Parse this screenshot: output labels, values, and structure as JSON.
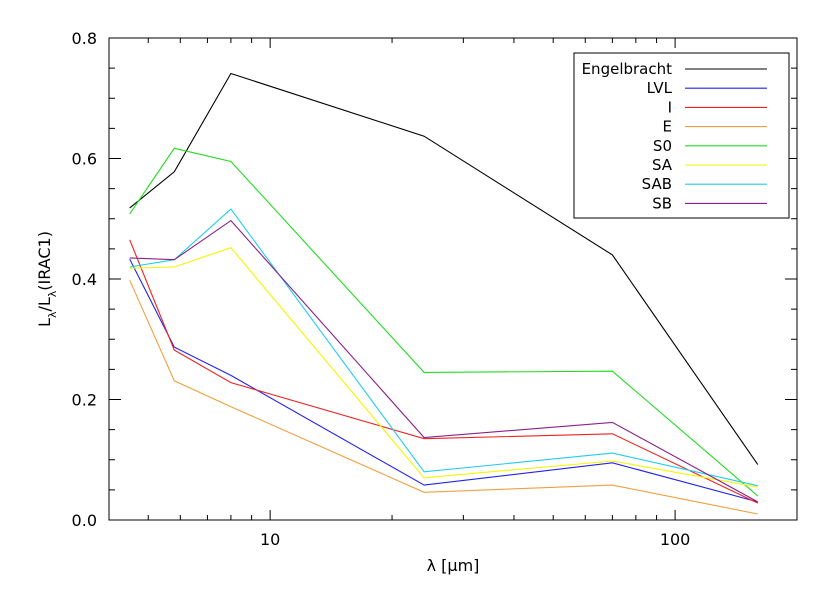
{
  "chart_data": {
    "type": "line",
    "x_scale": "log",
    "xlim": [
      4.0,
      200.0
    ],
    "ylim": [
      0.0,
      0.8
    ],
    "xlabel": "λ [μm]",
    "ylabel_main": "L",
    "ylabel_sub1": "λ",
    "ylabel_mid": "/L",
    "ylabel_sub2": "λ",
    "ylabel_tail": "(IRAC1)",
    "x_ticks": [
      {
        "value": 10,
        "label": "10"
      },
      {
        "value": 100,
        "label": "100"
      }
    ],
    "y_ticks": [
      {
        "value": 0.0,
        "label": "0.0"
      },
      {
        "value": 0.2,
        "label": "0.2"
      },
      {
        "value": 0.4,
        "label": "0.4"
      },
      {
        "value": 0.6,
        "label": "0.6"
      },
      {
        "value": 0.8,
        "label": "0.8"
      }
    ],
    "legend_position": "top-right",
    "x": [
      4.5,
      5.8,
      8.0,
      24.0,
      70.0,
      160.0
    ],
    "series": [
      {
        "name": "Engelbracht",
        "color": "#000000",
        "values": [
          0.518,
          0.578,
          0.741,
          0.637,
          0.44,
          0.092
        ]
      },
      {
        "name": "LVL",
        "color": "#2222ee",
        "values": [
          0.433,
          0.287,
          0.24,
          0.058,
          0.095,
          0.03
        ]
      },
      {
        "name": "I",
        "color": "#ee2222",
        "values": [
          0.465,
          0.282,
          0.228,
          0.135,
          0.143,
          0.028
        ]
      },
      {
        "name": "E",
        "color": "#f0a040",
        "values": [
          0.398,
          0.231,
          0.188,
          0.046,
          0.058,
          0.01
        ]
      },
      {
        "name": "S0",
        "color": "#22dd22",
        "values": [
          0.508,
          0.617,
          0.595,
          0.245,
          0.247,
          0.04
        ]
      },
      {
        "name": "SA",
        "color": "#f5f500",
        "values": [
          0.418,
          0.42,
          0.452,
          0.07,
          0.098,
          0.055
        ]
      },
      {
        "name": "SAB",
        "color": "#22ccee",
        "values": [
          0.42,
          0.432,
          0.516,
          0.08,
          0.111,
          0.057
        ]
      },
      {
        "name": "SB",
        "color": "#882288",
        "values": [
          0.435,
          0.432,
          0.497,
          0.137,
          0.162,
          0.03
        ]
      }
    ]
  }
}
